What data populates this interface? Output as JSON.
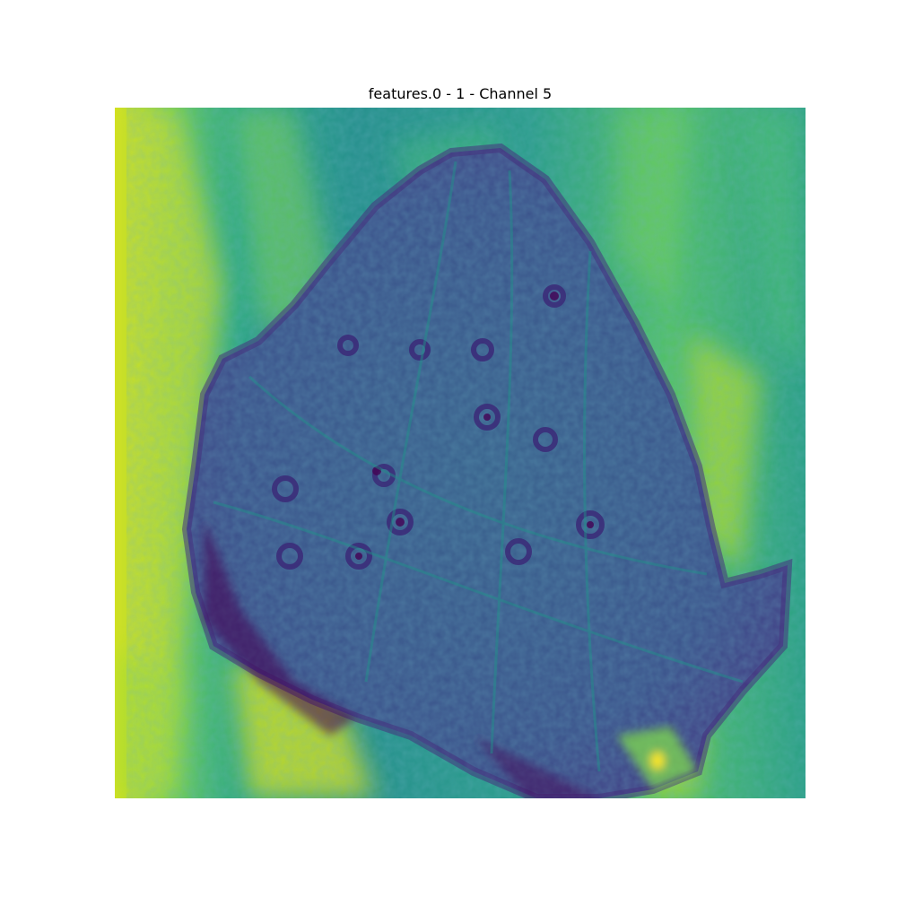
{
  "figure": {
    "title": "features.0 - 1 - Channel 5"
  },
  "image": {
    "subject": "butterfly-wing-feature-map",
    "colormap": "viridis",
    "colors": {
      "low": "#440154",
      "low_mid": "#3b528b",
      "mid": "#21918c",
      "high_mid": "#5ec962",
      "high": "#fde725",
      "background_teal": "#2a9d8f",
      "wing_fill": "#3e5a8c"
    },
    "axes_visible": false
  }
}
